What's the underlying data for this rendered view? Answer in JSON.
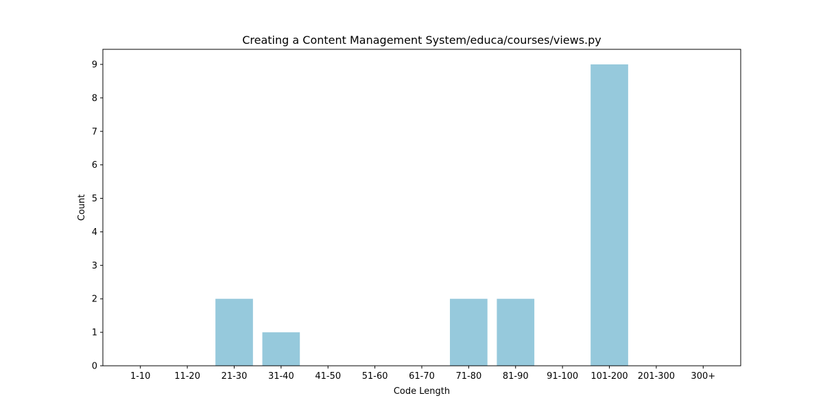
{
  "chart_data": {
    "type": "bar",
    "title": "Creating a Content Management System/educa/courses/views.py",
    "xlabel": "Code Length",
    "ylabel": "Count",
    "categories": [
      "1-10",
      "11-20",
      "21-30",
      "31-40",
      "41-50",
      "51-60",
      "61-70",
      "71-80",
      "81-90",
      "91-100",
      "101-200",
      "201-300",
      "300+"
    ],
    "values": [
      0,
      0,
      2,
      1,
      0,
      0,
      0,
      2,
      2,
      0,
      9,
      0,
      0
    ],
    "ylim": [
      0,
      9.45
    ],
    "yticks": [
      0,
      1,
      2,
      3,
      4,
      5,
      6,
      7,
      8,
      9
    ],
    "grid": false,
    "bar_color": "#96c9dc"
  }
}
